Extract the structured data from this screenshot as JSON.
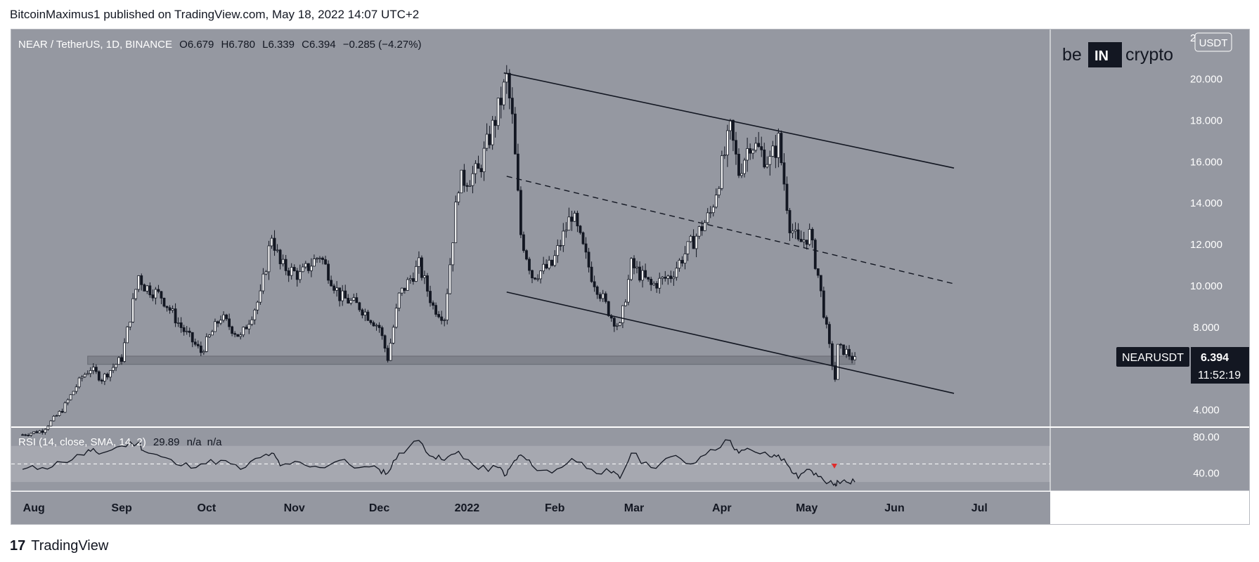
{
  "header": {
    "text": "BitcoinMaximus1 published on TradingView.com, May 18, 2022 14:07 UTC+2"
  },
  "footer": {
    "logo_glyph": "17",
    "text": "TradingView"
  },
  "watermark": {
    "left": "be",
    "mid": "IN",
    "right": "crypto"
  },
  "legend": {
    "symbol": "NEAR / TetherUS, 1D, BINANCE",
    "o_label": "O",
    "o_value": "6.679",
    "h_label": "H",
    "h_value": "6.780",
    "l_label": "L",
    "l_value": "6.339",
    "c_label": "C",
    "c_value": "6.394",
    "change": "−0.285 (−4.27%)"
  },
  "currency_badge": "USDT",
  "price_tag": {
    "symbol": "NEARUSDT",
    "price": "6.394",
    "countdown": "11:52:19"
  },
  "rsi_legend": {
    "label": "RSI (14, close, SMA, 14, 2)",
    "value": "29.89",
    "na1": "n/a",
    "na2": "n/a"
  },
  "colors": {
    "chart_bg": "#9598a1",
    "rsi_band": "#a6a8b0",
    "support_zone": "#7c7f88",
    "line": "#131722",
    "rsi_marker": "#e02b2b",
    "price_tag_bg": "#131722"
  },
  "chart_data": [
    {
      "type": "candlestick",
      "title": "NEAR / TetherUS, 1D, BINANCE",
      "x_tick_labels": [
        "Aug",
        "Sep",
        "Oct",
        "Nov",
        "Dec",
        "2022",
        "Feb",
        "Mar",
        "Apr",
        "May",
        "Jun",
        "Jul"
      ],
      "y_tick_labels": [
        "22.000",
        "20.000",
        "18.000",
        "16.000",
        "14.000",
        "12.000",
        "10.000",
        "8.000",
        "4.000"
      ],
      "ylim": [
        3.2,
        22.4
      ],
      "grid": false,
      "series": [
        {
          "name": "NEARUSDT",
          "x": [
            "2021-07-28",
            "2021-08-04",
            "2021-08-11",
            "2021-08-18",
            "2021-08-21",
            "2021-08-25",
            "2021-09-01",
            "2021-09-07",
            "2021-09-09",
            "2021-09-15",
            "2021-09-22",
            "2021-09-29",
            "2021-10-06",
            "2021-10-13",
            "2021-10-20",
            "2021-10-24",
            "2021-10-27",
            "2021-11-03",
            "2021-11-10",
            "2021-11-17",
            "2021-11-24",
            "2021-12-01",
            "2021-12-04",
            "2021-12-08",
            "2021-12-15",
            "2021-12-20",
            "2021-12-24",
            "2021-12-29",
            "2022-01-05",
            "2022-01-12",
            "2022-01-15",
            "2022-01-17",
            "2022-01-20",
            "2022-01-24",
            "2022-01-31",
            "2022-02-07",
            "2022-02-14",
            "2022-02-21",
            "2022-02-24",
            "2022-02-28",
            "2022-03-07",
            "2022-03-14",
            "2022-03-21",
            "2022-03-28",
            "2022-04-04",
            "2022-04-07",
            "2022-04-11",
            "2022-04-18",
            "2022-04-21",
            "2022-04-25",
            "2022-04-28",
            "2022-05-02",
            "2022-05-05",
            "2022-05-09",
            "2022-05-11",
            "2022-05-12",
            "2022-05-15",
            "2022-05-18"
          ],
          "close": [
            2.8,
            3.0,
            4.0,
            5.6,
            6.0,
            5.5,
            6.5,
            10.5,
            10.0,
            9.5,
            8.0,
            6.8,
            8.5,
            7.5,
            9.5,
            12.5,
            11.0,
            10.5,
            11.5,
            9.5,
            9.0,
            8.0,
            6.5,
            9.5,
            11.0,
            9.0,
            8.5,
            15.0,
            15.5,
            18.5,
            20.0,
            18.0,
            12.5,
            10.5,
            11.0,
            13.5,
            10.5,
            8.5,
            8.0,
            11.0,
            10.0,
            10.5,
            12.0,
            13.5,
            17.5,
            15.5,
            17.0,
            16.0,
            17.0,
            13.0,
            12.0,
            12.5,
            10.5,
            7.0,
            5.5,
            7.0,
            6.8,
            6.394
          ]
        },
        {
          "name": "Descending channel upper",
          "x": [
            "2022-01-14",
            "2022-06-22"
          ],
          "values": [
            20.3,
            15.7
          ]
        },
        {
          "name": "Descending channel mid (dashed)",
          "x": [
            "2022-01-15",
            "2022-06-22"
          ],
          "values": [
            15.3,
            10.1
          ]
        },
        {
          "name": "Descending channel lower",
          "x": [
            "2022-01-15",
            "2022-06-22"
          ],
          "values": [
            9.7,
            4.8
          ]
        },
        {
          "name": "Support zone",
          "x": [
            "2021-08-20",
            "2022-05-18"
          ],
          "values": [
            6.2,
            6.6
          ]
        }
      ]
    },
    {
      "type": "line",
      "title": "RSI (14, close, SMA, 14, 2)",
      "y_tick_labels": [
        "80.00",
        "40.00"
      ],
      "ylim": [
        20,
        90
      ],
      "series": [
        {
          "name": "RSI",
          "values": [
            44,
            46,
            52,
            60,
            64,
            62,
            70,
            74,
            64,
            58,
            48,
            50,
            54,
            44,
            57,
            62,
            48,
            52,
            46,
            54,
            46,
            44,
            40,
            62,
            76,
            58,
            54,
            64,
            44,
            46,
            38,
            50,
            60,
            48,
            40,
            56,
            44,
            40,
            34,
            62,
            46,
            58,
            50,
            66,
            76,
            62,
            66,
            58,
            60,
            46,
            34,
            44,
            36,
            30,
            28,
            31,
            30,
            29.89
          ]
        }
      ]
    }
  ]
}
